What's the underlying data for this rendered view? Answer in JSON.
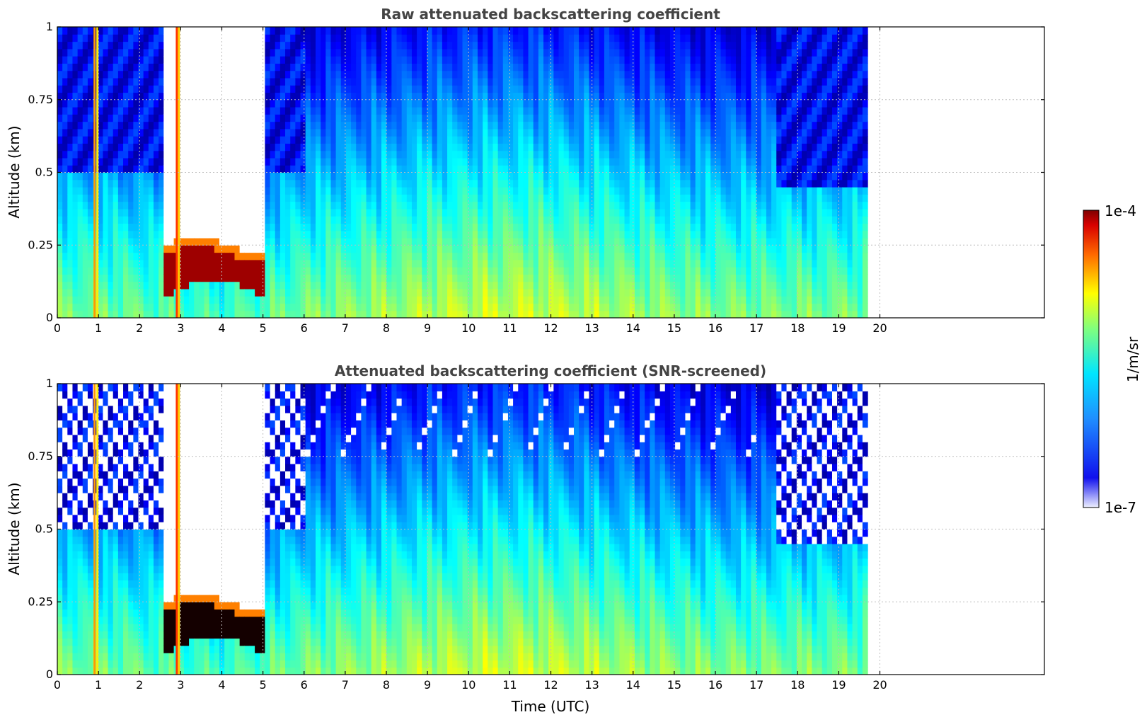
{
  "chart_data": [
    {
      "type": "heatmap",
      "title": "Raw attenuated backscattering coefficient",
      "xlabel": "",
      "ylabel": "Altitude (km)",
      "xlim": [
        0,
        24
      ],
      "ylim": [
        0,
        1
      ],
      "xticks": [
        "0",
        "1",
        "2",
        "3",
        "4",
        "5",
        "6",
        "7",
        "8",
        "9",
        "10",
        "11",
        "12",
        "13",
        "14",
        "15",
        "16",
        "17",
        "18",
        "19",
        "20"
      ],
      "yticks": [
        "0",
        "0.25",
        "0.5",
        "0.75",
        "1"
      ],
      "data_x_range": [
        0,
        19.7
      ],
      "grid": true,
      "screened": false
    },
    {
      "type": "heatmap",
      "title": "Attenuated backscattering coefficient (SNR-screened)",
      "xlabel": "Time (UTC)",
      "ylabel": "Altitude (km)",
      "xlim": [
        0,
        24
      ],
      "ylim": [
        0,
        1
      ],
      "xticks": [
        "0",
        "1",
        "2",
        "3",
        "4",
        "5",
        "6",
        "7",
        "8",
        "9",
        "10",
        "11",
        "12",
        "13",
        "14",
        "15",
        "16",
        "17",
        "18",
        "19",
        "20"
      ],
      "yticks": [
        "0",
        "0.25",
        "0.5",
        "0.75",
        "1"
      ],
      "data_x_range": [
        0,
        19.7
      ],
      "grid": true,
      "screened": true
    }
  ],
  "colorbar": {
    "label": "1/m/sr",
    "max_label": "1e-4",
    "min_label": "1e-7",
    "scale": "log",
    "range": [
      1e-07,
      0.0001
    ],
    "colormap": "jet"
  }
}
